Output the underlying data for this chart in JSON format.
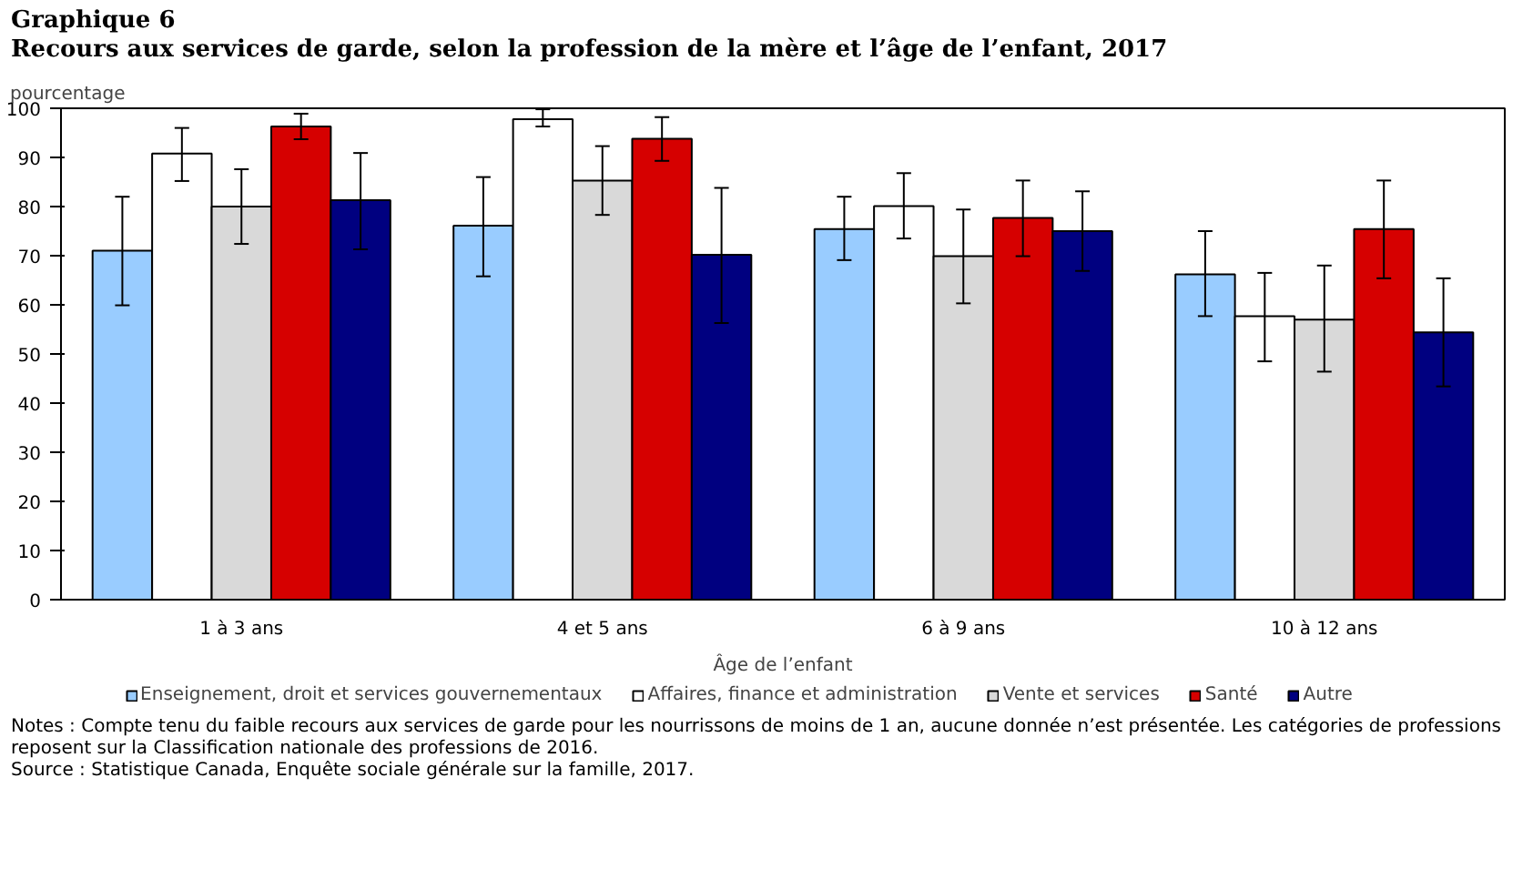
{
  "chart_data": {
    "type": "bar",
    "title": "Graphique 6",
    "subtitle": "Recours aux services de garde, selon la profession de la mère et l’âge de l’enfant, 2017",
    "ylabel": "pourcentage",
    "xlabel": "Âge de l’enfant",
    "categories": [
      "1 à 3 ans",
      "4 et 5 ans",
      "6 à 9 ans",
      "10 à 12 ans"
    ],
    "series": [
      {
        "name": "Enseignement, droit et services gouvernementaux",
        "color": "#99ccff",
        "values": [
          71.0,
          76.1,
          75.4,
          66.2
        ],
        "errors": [
          [
            59.9,
            82.0
          ],
          [
            65.8,
            86.0
          ],
          [
            69.1,
            82.0
          ],
          [
            57.7,
            75.0
          ]
        ]
      },
      {
        "name": "Affaires, finance et administration",
        "color": "#ffffff",
        "values": [
          90.8,
          97.8,
          80.1,
          57.7
        ],
        "errors": [
          [
            85.2,
            96.0
          ],
          [
            96.3,
            99.8
          ],
          [
            73.5,
            86.8
          ],
          [
            48.5,
            66.5
          ]
        ]
      },
      {
        "name": "Vente et services",
        "color": "#d9d9d9",
        "values": [
          80.0,
          85.3,
          69.9,
          57.0
        ],
        "errors": [
          [
            72.4,
            87.6
          ],
          [
            78.3,
            92.3
          ],
          [
            60.3,
            79.4
          ],
          [
            46.4,
            68.0
          ]
        ]
      },
      {
        "name": "Santé",
        "color": "#d60000",
        "values": [
          96.3,
          93.8,
          77.7,
          75.4
        ],
        "errors": [
          [
            93.7,
            98.9
          ],
          [
            89.3,
            98.2
          ],
          [
            69.9,
            85.3
          ],
          [
            65.4,
            85.3
          ]
        ]
      },
      {
        "name": "Autre",
        "color": "#000080",
        "values": [
          81.3,
          70.2,
          75.0,
          54.4
        ],
        "errors": [
          [
            71.3,
            90.9
          ],
          [
            56.3,
            83.8
          ],
          [
            66.9,
            83.1
          ],
          [
            43.4,
            65.4
          ]
        ]
      }
    ],
    "ylim": [
      0,
      100
    ],
    "yticks": [
      0,
      10,
      20,
      30,
      40,
      50,
      60,
      70,
      80,
      90,
      100
    ],
    "grid": false,
    "legend": "bottom",
    "annotations": [
      "Notes : Compte tenu du faible recours aux services de garde pour les nourrissons de moins de 1 an, aucune donnée n’est présentée. Les catégories de professions reposent sur la Classification nationale des professions de 2016.",
      "Source : Statistique  Canada, Enquête sociale générale sur la famille, 2017."
    ]
  }
}
